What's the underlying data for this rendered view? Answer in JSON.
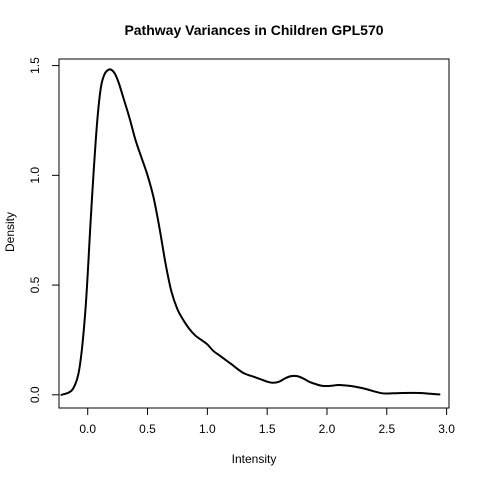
{
  "chart_data": {
    "type": "line",
    "title": "Pathway Variances in Children GPL570",
    "xlabel": "Intensity",
    "ylabel": "Density",
    "xlim": [
      -0.24,
      3.02
    ],
    "ylim": [
      -0.06,
      1.53
    ],
    "x_ticks": [
      {
        "value": 0.0,
        "label": "0.0"
      },
      {
        "value": 0.5,
        "label": "0.5"
      },
      {
        "value": 1.0,
        "label": "1.0"
      },
      {
        "value": 1.5,
        "label": "1.5"
      },
      {
        "value": 2.0,
        "label": "2.0"
      },
      {
        "value": 2.5,
        "label": "2.5"
      },
      {
        "value": 3.0,
        "label": "3.0"
      }
    ],
    "y_ticks": [
      {
        "value": 0.0,
        "label": "0.0"
      },
      {
        "value": 0.5,
        "label": "0.5"
      },
      {
        "value": 1.0,
        "label": "1.0"
      },
      {
        "value": 1.5,
        "label": "1.5"
      }
    ],
    "box": true,
    "grid": false,
    "line_color": "#000000",
    "series": [
      {
        "x": [
          -0.22,
          -0.16,
          -0.12,
          -0.08,
          -0.05,
          -0.02,
          0.0,
          0.02,
          0.05,
          0.08,
          0.11,
          0.14,
          0.17,
          0.2,
          0.23,
          0.26,
          0.3,
          0.35,
          0.4,
          0.45,
          0.5,
          0.55,
          0.6,
          0.65,
          0.7,
          0.75,
          0.8,
          0.85,
          0.9,
          0.95,
          1.0,
          1.05,
          1.1,
          1.15,
          1.2,
          1.3,
          1.4,
          1.5,
          1.55,
          1.6,
          1.65,
          1.7,
          1.75,
          1.8,
          1.85,
          1.9,
          1.95,
          2.0,
          2.05,
          2.1,
          2.2,
          2.3,
          2.4,
          2.45,
          2.5,
          2.6,
          2.7,
          2.8,
          2.9,
          2.94
        ],
        "y": [
          0.0,
          0.01,
          0.03,
          0.09,
          0.2,
          0.38,
          0.55,
          0.75,
          1.02,
          1.25,
          1.4,
          1.46,
          1.48,
          1.48,
          1.46,
          1.42,
          1.35,
          1.26,
          1.16,
          1.08,
          1.0,
          0.9,
          0.76,
          0.6,
          0.47,
          0.39,
          0.34,
          0.3,
          0.27,
          0.25,
          0.23,
          0.2,
          0.18,
          0.16,
          0.14,
          0.1,
          0.08,
          0.06,
          0.055,
          0.06,
          0.075,
          0.085,
          0.085,
          0.075,
          0.06,
          0.05,
          0.042,
          0.04,
          0.042,
          0.045,
          0.04,
          0.03,
          0.015,
          0.008,
          0.006,
          0.008,
          0.009,
          0.008,
          0.003,
          0.002
        ]
      }
    ]
  }
}
